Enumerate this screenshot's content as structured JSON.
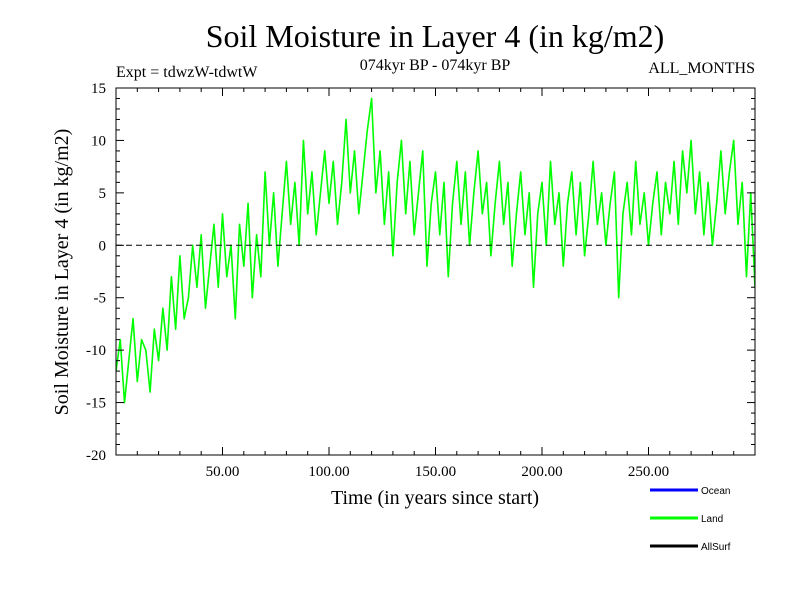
{
  "chart_data": {
    "type": "line",
    "title": "Soil Moisture in Layer 4 (in kg/m2)",
    "subtitle_left": "Expt = tdwzW-tdwtW",
    "subtitle_center": "074kyr BP - 074kyr BP",
    "subtitle_right": "ALL_MONTHS",
    "xlabel": "Time (in years since start)",
    "ylabel": "Soil Moisture in Layer 4 (in kg/m2)",
    "xlim": [
      0,
      300
    ],
    "ylim": [
      -20,
      15
    ],
    "xticks": [
      50,
      100,
      150,
      200,
      250
    ],
    "xtick_labels": [
      "50.00",
      "100.00",
      "150.00",
      "200.00",
      "250.00"
    ],
    "yticks": [
      -20,
      -15,
      -10,
      -5,
      0,
      5,
      10,
      15
    ],
    "ytick_labels": [
      "-20",
      "-15",
      "-10",
      "-5",
      "0",
      "5",
      "10",
      "15"
    ],
    "zero_line": "dashed",
    "grid": false,
    "legend_position": "bottom-right",
    "series": [
      {
        "name": "Ocean",
        "color": "#0000ff",
        "x": [],
        "values": []
      },
      {
        "name": "Land",
        "color": "#00ff00",
        "x": [
          0,
          2,
          4,
          6,
          8,
          10,
          12,
          14,
          16,
          18,
          20,
          22,
          24,
          26,
          28,
          30,
          32,
          34,
          36,
          38,
          40,
          42,
          44,
          46,
          48,
          50,
          52,
          54,
          56,
          58,
          60,
          62,
          64,
          66,
          68,
          70,
          72,
          74,
          76,
          78,
          80,
          82,
          84,
          86,
          88,
          90,
          92,
          94,
          96,
          98,
          100,
          102,
          104,
          106,
          108,
          110,
          112,
          114,
          116,
          118,
          120,
          122,
          124,
          126,
          128,
          130,
          132,
          134,
          136,
          138,
          140,
          142,
          144,
          146,
          148,
          150,
          152,
          154,
          156,
          158,
          160,
          162,
          164,
          166,
          168,
          170,
          172,
          174,
          176,
          178,
          180,
          182,
          184,
          186,
          188,
          190,
          192,
          194,
          196,
          198,
          200,
          202,
          204,
          206,
          208,
          210,
          212,
          214,
          216,
          218,
          220,
          222,
          224,
          226,
          228,
          230,
          232,
          234,
          236,
          238,
          240,
          242,
          244,
          246,
          248,
          250,
          252,
          254,
          256,
          258,
          260,
          262,
          264,
          266,
          268,
          270,
          272,
          274,
          276,
          278,
          280,
          282,
          284,
          286,
          288,
          290,
          292,
          294,
          296,
          298,
          300
        ],
        "values": [
          -12,
          -9,
          -15,
          -11,
          -7,
          -13,
          -9,
          -10,
          -14,
          -8,
          -11,
          -6,
          -10,
          -3,
          -8,
          -1,
          -7,
          -5,
          0,
          -4,
          1,
          -6,
          -2,
          2,
          -4,
          3,
          -3,
          0,
          -7,
          2,
          -2,
          4,
          -5,
          1,
          -3,
          7,
          0,
          5,
          -2,
          3,
          8,
          2,
          6,
          0,
          10,
          3,
          7,
          1,
          5,
          9,
          4,
          8,
          2,
          6,
          12,
          5,
          9,
          3,
          7,
          11,
          14,
          5,
          9,
          2,
          7,
          -1,
          6,
          10,
          3,
          8,
          1,
          5,
          9,
          -2,
          4,
          7,
          1,
          6,
          -3,
          4,
          8,
          2,
          7,
          0,
          5,
          9,
          3,
          6,
          -1,
          4,
          8,
          2,
          6,
          -2,
          3,
          7,
          1,
          5,
          -4,
          3,
          6,
          0,
          8,
          2,
          5,
          -2,
          4,
          7,
          1,
          6,
          -1,
          3,
          8,
          2,
          5,
          0,
          4,
          7,
          -5,
          3,
          6,
          1,
          8,
          2,
          5,
          0,
          4,
          7,
          1,
          6,
          3,
          8,
          2,
          9,
          5,
          10,
          3,
          7,
          1,
          6,
          0,
          4,
          9,
          3,
          7,
          10,
          2,
          6,
          -3,
          5,
          -4
        ]
      },
      {
        "name": "AllSurf",
        "color": "#000000",
        "x": [],
        "values": []
      }
    ]
  }
}
